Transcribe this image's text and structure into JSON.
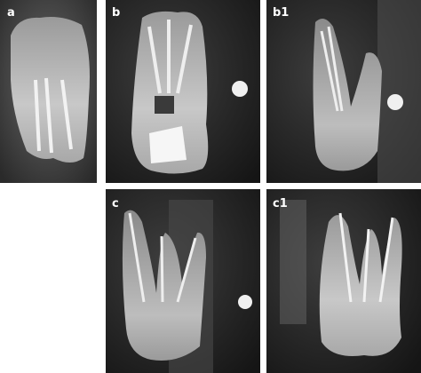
{
  "panels": [
    {
      "label": "a"
    },
    {
      "label": "b"
    },
    {
      "label": "b1"
    },
    {
      "label": "c"
    },
    {
      "label": "c1"
    }
  ]
}
